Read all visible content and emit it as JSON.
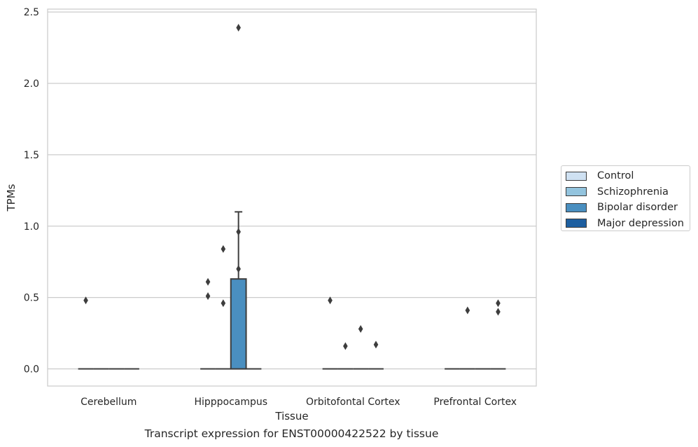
{
  "chart_data": {
    "type": "box",
    "xlabel": "Tissue",
    "ylabel": "TPMs",
    "caption": "Transcript expression for ENST00000422522 by tissue",
    "categories": [
      "Cerebellum",
      "Hipppocampus",
      "Orbitofontal Cortex",
      "Prefrontal Cortex"
    ],
    "ylim": [
      -0.12,
      2.52
    ],
    "yticks": [
      0.0,
      0.5,
      1.0,
      1.5,
      2.0,
      2.5
    ],
    "ytick_labels": [
      "0.0",
      "0.5",
      "1.0",
      "1.5",
      "2.0",
      "2.5"
    ],
    "grid": true,
    "legend_position": "right",
    "series": [
      {
        "name": "Control",
        "color": "#cfe1f2"
      },
      {
        "name": "Schizophrenia",
        "color": "#93c4de"
      },
      {
        "name": "Bipolar disorder",
        "color": "#4a8fc0"
      },
      {
        "name": "Major depression",
        "color": "#1d5fa0"
      }
    ],
    "boxes": [
      {
        "category": 0,
        "series": 0,
        "q1": 0,
        "median": 0,
        "q3": 0,
        "whisker_low": 0,
        "whisker_high": 0,
        "outliers": [
          0.48
        ]
      },
      {
        "category": 0,
        "series": 1,
        "q1": 0,
        "median": 0,
        "q3": 0,
        "whisker_low": 0,
        "whisker_high": 0,
        "outliers": []
      },
      {
        "category": 0,
        "series": 2,
        "q1": 0,
        "median": 0,
        "q3": 0,
        "whisker_low": 0,
        "whisker_high": 0,
        "outliers": []
      },
      {
        "category": 0,
        "series": 3,
        "q1": 0,
        "median": 0,
        "q3": 0,
        "whisker_low": 0,
        "whisker_high": 0,
        "outliers": []
      },
      {
        "category": 1,
        "series": 0,
        "q1": 0,
        "median": 0,
        "q3": 0,
        "whisker_low": 0,
        "whisker_high": 0,
        "outliers": [
          0.61,
          0.51
        ]
      },
      {
        "category": 1,
        "series": 1,
        "q1": 0,
        "median": 0,
        "q3": 0,
        "whisker_low": 0,
        "whisker_high": 0,
        "outliers": [
          0.84,
          0.46
        ]
      },
      {
        "category": 1,
        "series": 2,
        "q1": 0,
        "median": 0,
        "q3": 0.63,
        "whisker_low": 0,
        "whisker_high": 1.1,
        "outliers": [
          2.39,
          0.96,
          0.7
        ]
      },
      {
        "category": 1,
        "series": 3,
        "q1": 0,
        "median": 0,
        "q3": 0,
        "whisker_low": 0,
        "whisker_high": 0,
        "outliers": []
      },
      {
        "category": 2,
        "series": 0,
        "q1": 0,
        "median": 0,
        "q3": 0,
        "whisker_low": 0,
        "whisker_high": 0,
        "outliers": [
          0.48
        ]
      },
      {
        "category": 2,
        "series": 1,
        "q1": 0,
        "median": 0,
        "q3": 0,
        "whisker_low": 0,
        "whisker_high": 0,
        "outliers": [
          0.16
        ]
      },
      {
        "category": 2,
        "series": 2,
        "q1": 0,
        "median": 0,
        "q3": 0,
        "whisker_low": 0,
        "whisker_high": 0,
        "outliers": [
          0.28
        ]
      },
      {
        "category": 2,
        "series": 3,
        "q1": 0,
        "median": 0,
        "q3": 0,
        "whisker_low": 0,
        "whisker_high": 0,
        "outliers": [
          0.17
        ]
      },
      {
        "category": 3,
        "series": 0,
        "q1": 0,
        "median": 0,
        "q3": 0,
        "whisker_low": 0,
        "whisker_high": 0,
        "outliers": []
      },
      {
        "category": 3,
        "series": 1,
        "q1": 0,
        "median": 0,
        "q3": 0,
        "whisker_low": 0,
        "whisker_high": 0,
        "outliers": [
          0.41
        ]
      },
      {
        "category": 3,
        "series": 2,
        "q1": 0,
        "median": 0,
        "q3": 0,
        "whisker_low": 0,
        "whisker_high": 0,
        "outliers": []
      },
      {
        "category": 3,
        "series": 3,
        "q1": 0,
        "median": 0,
        "q3": 0,
        "whisker_low": 0,
        "whisker_high": 0,
        "outliers": [
          0.46,
          0.4
        ]
      }
    ]
  }
}
